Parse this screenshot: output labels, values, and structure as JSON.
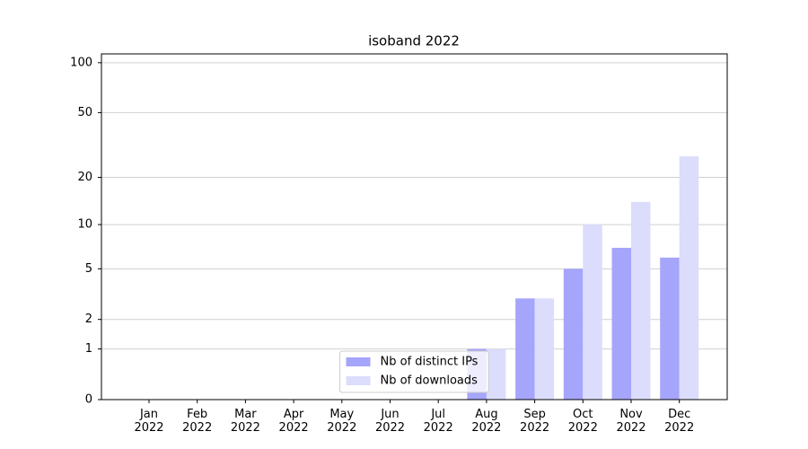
{
  "chart_data": {
    "type": "bar",
    "title": "isoband 2022",
    "categories": [
      "Jan\n2022",
      "Feb\n2022",
      "Mar\n2022",
      "Apr\n2022",
      "May\n2022",
      "Jun\n2022",
      "Jul\n2022",
      "Aug\n2022",
      "Sep\n2022",
      "Oct\n2022",
      "Nov\n2022",
      "Dec\n2022"
    ],
    "series": [
      {
        "name": "Nb of distinct IPs",
        "color": "#a5a5fb",
        "values": [
          0,
          0,
          0,
          0,
          0,
          0,
          0,
          1,
          3,
          5,
          7,
          6
        ]
      },
      {
        "name": "Nb of downloads",
        "color": "#dcdcfd",
        "values": [
          0,
          0,
          0,
          0,
          0,
          0,
          0,
          1,
          3,
          10,
          14,
          27
        ]
      }
    ],
    "yscale": "log1p",
    "ylim": [
      0,
      113
    ],
    "yticks": [
      0,
      1,
      2,
      5,
      10,
      20,
      50,
      100
    ],
    "grid": true,
    "legend": "lower center"
  }
}
